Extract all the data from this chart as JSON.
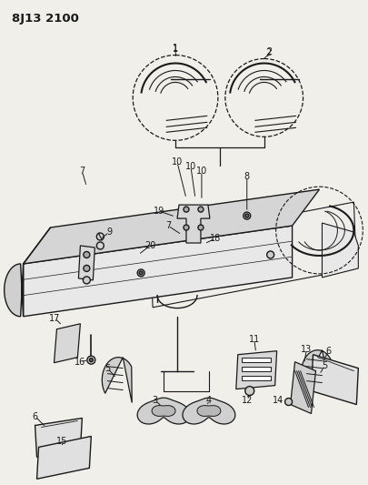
{
  "title": "8J13 2100",
  "bg_color": "#f0efea",
  "line_color": "#1a1a1a",
  "title_fontsize": 9.5,
  "label_fontsize": 7.0
}
